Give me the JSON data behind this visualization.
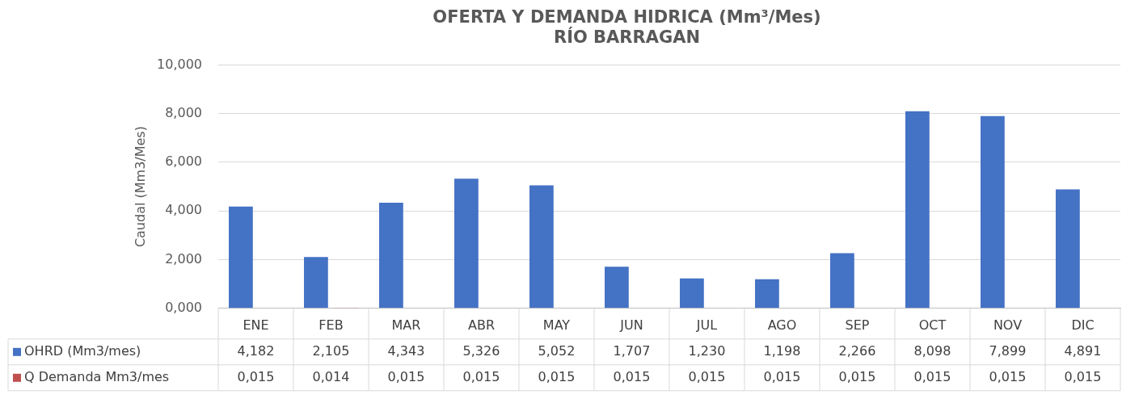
{
  "chart_data": {
    "type": "bar",
    "title": "OFERTA Y DEMANDA HIDRICA (Mm³/Mes)",
    "subtitle": "RÍO BARRAGAN",
    "ylabel": "Caudal (Mm3/Mes)",
    "categories": [
      "ENE",
      "FEB",
      "MAR",
      "ABR",
      "MAY",
      "JUN",
      "JUL",
      "AGO",
      "SEP",
      "OCT",
      "NOV",
      "DIC"
    ],
    "series": [
      {
        "name": "OHRD (Mm3/mes)",
        "color": "#4472c4",
        "values": [
          4.182,
          2.105,
          4.343,
          5.326,
          5.052,
          1.707,
          1.23,
          1.198,
          2.266,
          8.098,
          7.899,
          4.891
        ],
        "value_labels": [
          "4,182",
          "2,105",
          "4,343",
          "5,326",
          "5,052",
          "1,707",
          "1,230",
          "1,198",
          "2,266",
          "8,098",
          "7,899",
          "4,891"
        ]
      },
      {
        "name": "Q Demanda Mm3/mes",
        "color": "#c0504d",
        "values": [
          0.015,
          0.014,
          0.015,
          0.015,
          0.015,
          0.015,
          0.015,
          0.015,
          0.015,
          0.015,
          0.015,
          0.015
        ],
        "value_labels": [
          "0,015",
          "0,014",
          "0,015",
          "0,015",
          "0,015",
          "0,015",
          "0,015",
          "0,015",
          "0,015",
          "0,015",
          "0,015",
          "0,015"
        ]
      }
    ],
    "ylim": [
      0,
      10
    ],
    "yticks": [
      {
        "value": 0,
        "label": "0,000"
      },
      {
        "value": 2,
        "label": "2,000"
      },
      {
        "value": 4,
        "label": "4,000"
      },
      {
        "value": 6,
        "label": "6,000"
      },
      {
        "value": 8,
        "label": "8,000"
      },
      {
        "value": 10,
        "label": "10,000"
      }
    ],
    "grid": "y",
    "legend": "bottom"
  }
}
